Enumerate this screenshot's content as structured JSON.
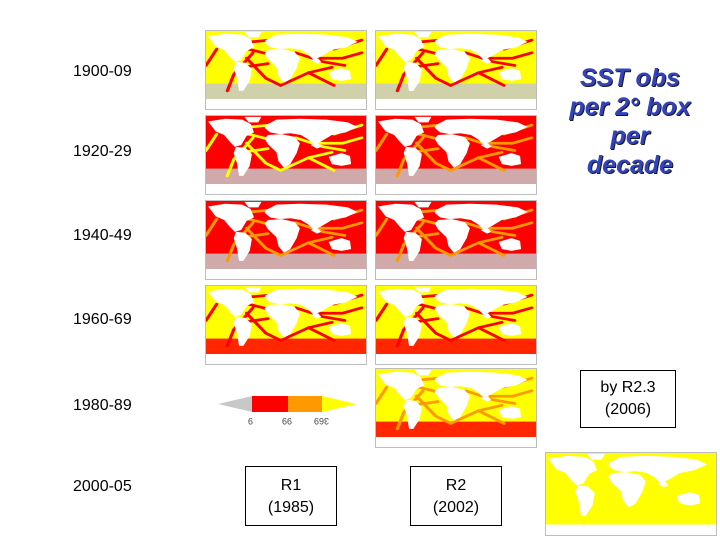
{
  "title": {
    "line1": "SST obs",
    "line2": "per 2° box",
    "line3": "per",
    "line4": "decade"
  },
  "decades": [
    "1900-09",
    "1920-29",
    "1940-49",
    "1960-69",
    "1980-89",
    "2000-05"
  ],
  "columns": [
    {
      "name": "R1",
      "year": "(1985)"
    },
    {
      "name": "R2",
      "year": "(2002)"
    }
  ],
  "r23": {
    "line1": "by R2.3",
    "line2": "(2006)"
  },
  "legend": {
    "ticks": [
      "9",
      "99",
      "369"
    ]
  },
  "colors": {
    "low": "#c8c8c8",
    "mid": "#ff0000",
    "high": "#ff9900",
    "max": "#ffff00",
    "land": "#ffffff",
    "title": "#3344bb"
  }
}
